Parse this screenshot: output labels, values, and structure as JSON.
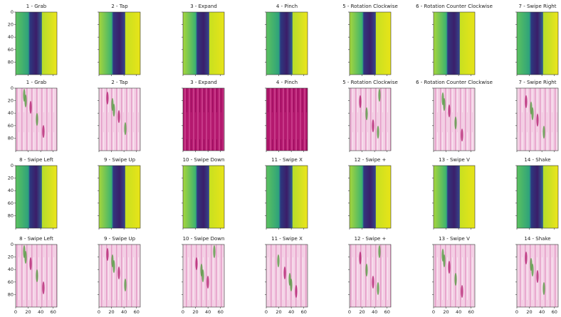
{
  "rows": [
    {
      "panels": [
        {
          "title": "1 - Grab"
        },
        {
          "title": "2 - Tap"
        },
        {
          "title": "3 - Expand"
        },
        {
          "title": "4 - Pinch"
        },
        {
          "title": "5 - Rotation Clockwise"
        },
        {
          "title": "6 - Rotation Counter Clockwise"
        },
        {
          "title": "7 - Swipe Right"
        }
      ]
    },
    {
      "panels": [
        {
          "title": "1 - Grab"
        },
        {
          "title": "2 - Tap"
        },
        {
          "title": "3 - Expand"
        },
        {
          "title": "4 - Pinch"
        },
        {
          "title": "5 - Rotation Clockwise"
        },
        {
          "title": "6 - Rotation Counter Clockwise"
        },
        {
          "title": "7 - Swipe Right"
        }
      ]
    },
    {
      "panels": [
        {
          "title": "8 - Swipe Left"
        },
        {
          "title": "9 - Swipe Up"
        },
        {
          "title": "10 - Swipe Down"
        },
        {
          "title": "11 - Swipe X"
        },
        {
          "title": "12 - Swipe +"
        },
        {
          "title": "13 - Swipe V"
        },
        {
          "title": "14 - Shake"
        }
      ]
    },
    {
      "panels": [
        {
          "title": "8 - Swipe Left"
        },
        {
          "title": "9 - Swipe Up"
        },
        {
          "title": "10 - Swipe Down"
        },
        {
          "title": "11 - Swipe X"
        },
        {
          "title": "12 - Swipe +"
        },
        {
          "title": "13 - Swipe V"
        },
        {
          "title": "14 - Shake"
        }
      ]
    }
  ],
  "yticks": [
    0,
    20,
    40,
    60,
    80
  ],
  "xticks": [
    0,
    20,
    40,
    60
  ]
}
